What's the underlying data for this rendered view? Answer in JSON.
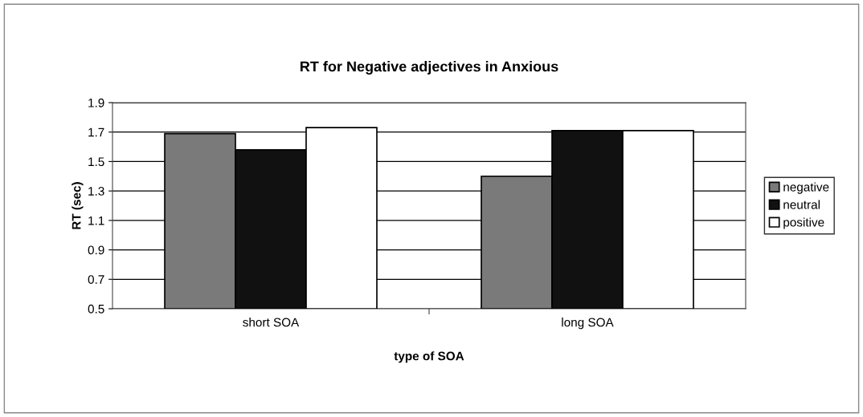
{
  "chart_data": {
    "type": "bar",
    "title": "RT for Negative adjectives in Anxious",
    "xlabel": "type of SOA",
    "ylabel": "RT (sec)",
    "categories": [
      "short SOA",
      "long SOA"
    ],
    "series": [
      {
        "name": "negative",
        "color": "#7a7a7a",
        "values": [
          1.69,
          1.4
        ]
      },
      {
        "name": "neutral",
        "color": "#111111",
        "values": [
          1.58,
          1.71
        ]
      },
      {
        "name": "positive",
        "color": "#ffffff",
        "values": [
          1.73,
          1.71
        ]
      }
    ],
    "ylim": [
      0.5,
      1.9
    ],
    "yticks": [
      0.5,
      0.7,
      0.9,
      1.1,
      1.3,
      1.5,
      1.7,
      1.9
    ],
    "grid": "y",
    "legend": "right"
  }
}
